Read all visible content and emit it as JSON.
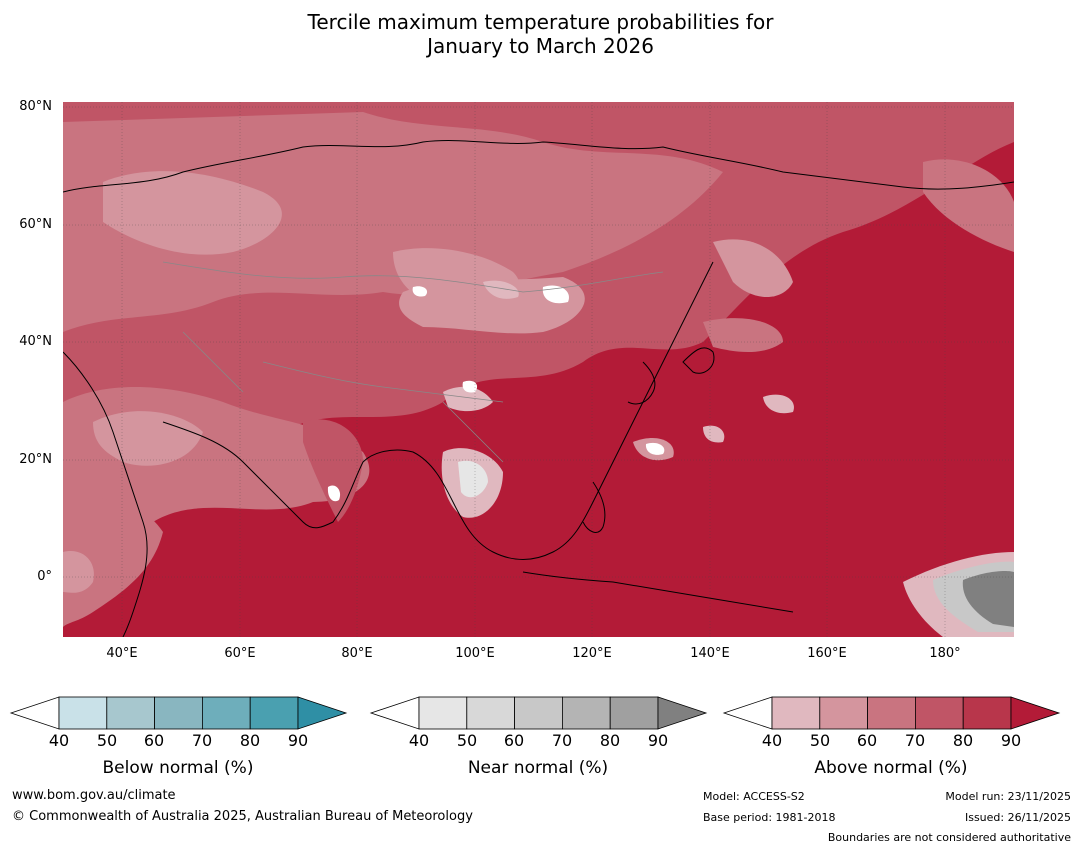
{
  "title_line1": "Tercile maximum temperature probabilities for",
  "title_line2": "January to March 2026",
  "lat_labels": [
    "80°N",
    "60°N",
    "40°N",
    "20°N",
    "0°"
  ],
  "lon_labels": [
    "40°E",
    "60°E",
    "80°E",
    "100°E",
    "120°E",
    "140°E",
    "160°E",
    "180°"
  ],
  "colorbars": [
    {
      "label": "Below normal (%)",
      "ticks": [
        "40",
        "50",
        "60",
        "70",
        "80",
        "90"
      ],
      "colors": [
        "#ffffff",
        "#c9e1e8",
        "#a7c7ce",
        "#89b6c0",
        "#6eaebb",
        "#4aa0b0",
        "#2f8fa5"
      ]
    },
    {
      "label": "Near normal (%)",
      "ticks": [
        "40",
        "50",
        "60",
        "70",
        "80",
        "90"
      ],
      "colors": [
        "#ffffff",
        "#e6e6e6",
        "#d8d8d8",
        "#c8c8c8",
        "#b4b4b4",
        "#a0a0a0",
        "#808080"
      ]
    },
    {
      "label": "Above normal (%)",
      "ticks": [
        "40",
        "50",
        "60",
        "70",
        "80",
        "90"
      ],
      "colors": [
        "#ffffff",
        "#e0b8bf",
        "#d4959e",
        "#c97480",
        "#c05566",
        "#b8364b",
        "#b31b37"
      ]
    }
  ],
  "footer": {
    "website": "www.bom.gov.au/climate",
    "copyright": "© Commonwealth of Australia 2025, Australian Bureau of Meteorology",
    "model": "Model: ACCESS-S2",
    "base_period": "Base period: 1981-2018",
    "model_run": "Model run: 23/11/2025",
    "issued": "Issued: 26/11/2025",
    "disclaimer": "Boundaries are not considered authoritative"
  }
}
